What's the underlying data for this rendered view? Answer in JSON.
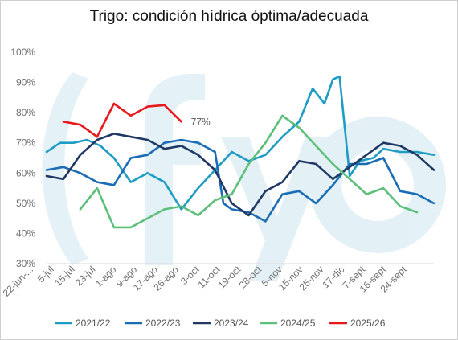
{
  "chart_data": {
    "type": "line",
    "title": "Trigo: condición hídrica óptima/adecuada",
    "ylim": [
      30,
      100
    ],
    "yticks": [
      "30%",
      "40%",
      "50%",
      "60%",
      "70%",
      "80%",
      "90%",
      "100%"
    ],
    "grid": false,
    "legend_position": "bottom",
    "categories": [
      "22-jun-...",
      "5-jul",
      "15-jul",
      "23-jul",
      "1-ago",
      "9-ago",
      "17-ago",
      "26-ago",
      "3-oct",
      "11-oct",
      "19-oct",
      "28-oct",
      "5-nov",
      "15-nov",
      "25-nov",
      "17-dic",
      "7-sept",
      "16-sept",
      "24-sept"
    ],
    "annotation": "77%",
    "series": [
      {
        "name": "2021/22",
        "color": "#1e9cc4",
        "points": [
          [
            0,
            67
          ],
          [
            0.8,
            70
          ],
          [
            1.6,
            70
          ],
          [
            2.4,
            71
          ],
          [
            3.2,
            69
          ],
          [
            4,
            65
          ],
          [
            5,
            57
          ],
          [
            6,
            60
          ],
          [
            7,
            57
          ],
          [
            8,
            48
          ],
          [
            9,
            55
          ],
          [
            10,
            61
          ],
          [
            11,
            67
          ],
          [
            12,
            64
          ],
          [
            13,
            66
          ],
          [
            14,
            72
          ],
          [
            15,
            77
          ],
          [
            15.8,
            88
          ],
          [
            16.5,
            83
          ],
          [
            17,
            91
          ],
          [
            17.4,
            92
          ],
          [
            18,
            59
          ],
          [
            18.6,
            64
          ],
          [
            19.4,
            65
          ],
          [
            20,
            68
          ],
          [
            21,
            67
          ],
          [
            22,
            67
          ],
          [
            23,
            66
          ]
        ]
      },
      {
        "name": "2022/23",
        "color": "#1a6cb5",
        "points": [
          [
            0,
            61
          ],
          [
            1,
            62
          ],
          [
            2,
            60
          ],
          [
            3,
            57
          ],
          [
            4,
            56
          ],
          [
            5,
            65
          ],
          [
            6,
            66
          ],
          [
            7,
            70
          ],
          [
            8,
            71
          ],
          [
            9,
            70
          ],
          [
            10,
            67
          ],
          [
            10.5,
            50
          ],
          [
            11,
            48
          ],
          [
            12,
            47
          ],
          [
            13,
            44
          ],
          [
            14,
            53
          ],
          [
            15,
            54
          ],
          [
            16,
            50
          ],
          [
            17,
            56
          ],
          [
            18,
            63
          ],
          [
            19,
            63
          ],
          [
            20,
            65
          ],
          [
            21,
            54
          ],
          [
            22,
            53
          ],
          [
            23,
            50
          ]
        ]
      },
      {
        "name": "2023/24",
        "color": "#1f3864",
        "points": [
          [
            0,
            59
          ],
          [
            1,
            58
          ],
          [
            2,
            66
          ],
          [
            3,
            71
          ],
          [
            4,
            73
          ],
          [
            5,
            72
          ],
          [
            6,
            71
          ],
          [
            7,
            68
          ],
          [
            8,
            69
          ],
          [
            9,
            66
          ],
          [
            10,
            61
          ],
          [
            11,
            50
          ],
          [
            12,
            46
          ],
          [
            13,
            54
          ],
          [
            14,
            57
          ],
          [
            15,
            64
          ],
          [
            16,
            63
          ],
          [
            17,
            58
          ],
          [
            18,
            62
          ],
          [
            19,
            66
          ],
          [
            20,
            70
          ],
          [
            21,
            69
          ],
          [
            22,
            66
          ],
          [
            23,
            61
          ]
        ]
      },
      {
        "name": "2024/25",
        "color": "#5cbf7a",
        "points": [
          [
            2,
            48
          ],
          [
            3,
            55
          ],
          [
            4,
            42
          ],
          [
            5,
            42
          ],
          [
            6,
            45
          ],
          [
            7,
            48
          ],
          [
            8,
            49
          ],
          [
            9,
            46
          ],
          [
            10,
            51
          ],
          [
            11,
            53
          ],
          [
            12,
            63
          ],
          [
            13,
            70
          ],
          [
            14,
            79
          ],
          [
            15,
            75
          ],
          [
            16,
            69
          ],
          [
            17,
            63
          ],
          [
            18,
            58
          ],
          [
            19,
            53
          ],
          [
            20,
            55
          ],
          [
            21,
            49
          ],
          [
            22,
            47
          ]
        ]
      },
      {
        "name": "2025/26",
        "color": "#e8191e",
        "points": [
          [
            1,
            77
          ],
          [
            2,
            76
          ],
          [
            3,
            72
          ],
          [
            4,
            83
          ],
          [
            5,
            79
          ],
          [
            6,
            82
          ],
          [
            7,
            82.5
          ],
          [
            8,
            77
          ]
        ]
      }
    ]
  }
}
